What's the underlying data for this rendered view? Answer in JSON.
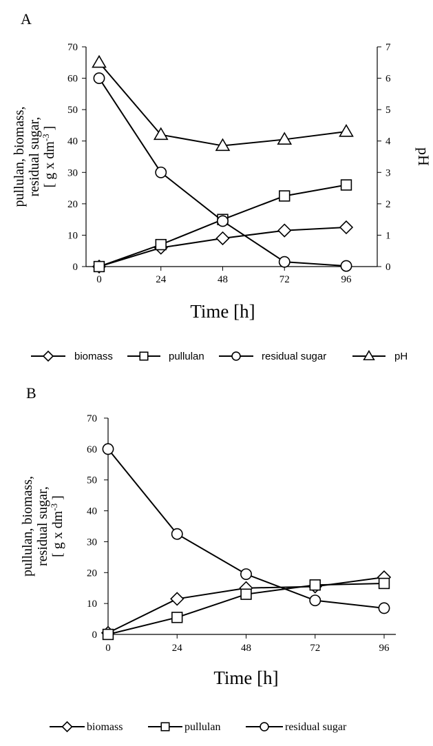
{
  "chart_data": [
    {
      "panel_label": "A",
      "type": "line",
      "x": [
        0,
        24,
        48,
        72,
        96
      ],
      "x_ticks": [
        "0",
        "24",
        "48",
        "72",
        "96"
      ],
      "xlabel": "Time [h]",
      "ylabel": {
        "line1": "pullulan, biomass,",
        "line2": "residual sugar,",
        "line3_pre": "[ g x dm",
        "line3_sup": "-3",
        "line3_post": " ]"
      },
      "ylim": [
        0,
        70
      ],
      "y_ticks": [
        0,
        10,
        20,
        30,
        40,
        50,
        60,
        70
      ],
      "y2label": "pH",
      "y2lim": [
        0,
        7
      ],
      "y2_ticks": [
        0,
        1,
        2,
        3,
        4,
        5,
        6,
        7
      ],
      "legend_position": "bottom",
      "grid": false,
      "series": [
        {
          "name": "biomass",
          "marker": "diamond",
          "axis": "left",
          "values": [
            0,
            6,
            9,
            11.5,
            12.5
          ]
        },
        {
          "name": "pullulan",
          "marker": "square",
          "axis": "left",
          "values": [
            0,
            7,
            15,
            22.5,
            26
          ]
        },
        {
          "name": "residual sugar",
          "marker": "circle",
          "axis": "left",
          "values": [
            60,
            30,
            14.5,
            1.5,
            0.2
          ]
        },
        {
          "name": "pH",
          "marker": "triangle",
          "axis": "right",
          "values": [
            6.5,
            4.2,
            3.85,
            4.05,
            4.3
          ]
        }
      ]
    },
    {
      "panel_label": "B",
      "type": "line",
      "x": [
        0,
        24,
        48,
        72,
        96
      ],
      "x_ticks": [
        "0",
        "24",
        "48",
        "72",
        "96"
      ],
      "xlabel": "Time [h]",
      "ylabel": {
        "line1": "pullulan, biomass,",
        "line2": "residual sugar,",
        "line3_pre": "[ g x dm",
        "line3_sup": "-3",
        "line3_post": " ]"
      },
      "ylim": [
        0,
        70
      ],
      "y_ticks": [
        0,
        10,
        20,
        30,
        40,
        50,
        60,
        70
      ],
      "legend_position": "bottom",
      "grid": false,
      "series": [
        {
          "name": "biomass",
          "marker": "diamond",
          "axis": "left",
          "values": [
            0.5,
            11.5,
            15,
            15.5,
            18.5
          ]
        },
        {
          "name": "pullulan",
          "marker": "square",
          "axis": "left",
          "values": [
            0,
            5.5,
            13,
            16,
            16.5
          ]
        },
        {
          "name": "residual sugar",
          "marker": "circle",
          "axis": "left",
          "values": [
            60,
            32.5,
            19.5,
            11,
            8.5
          ]
        }
      ]
    }
  ]
}
